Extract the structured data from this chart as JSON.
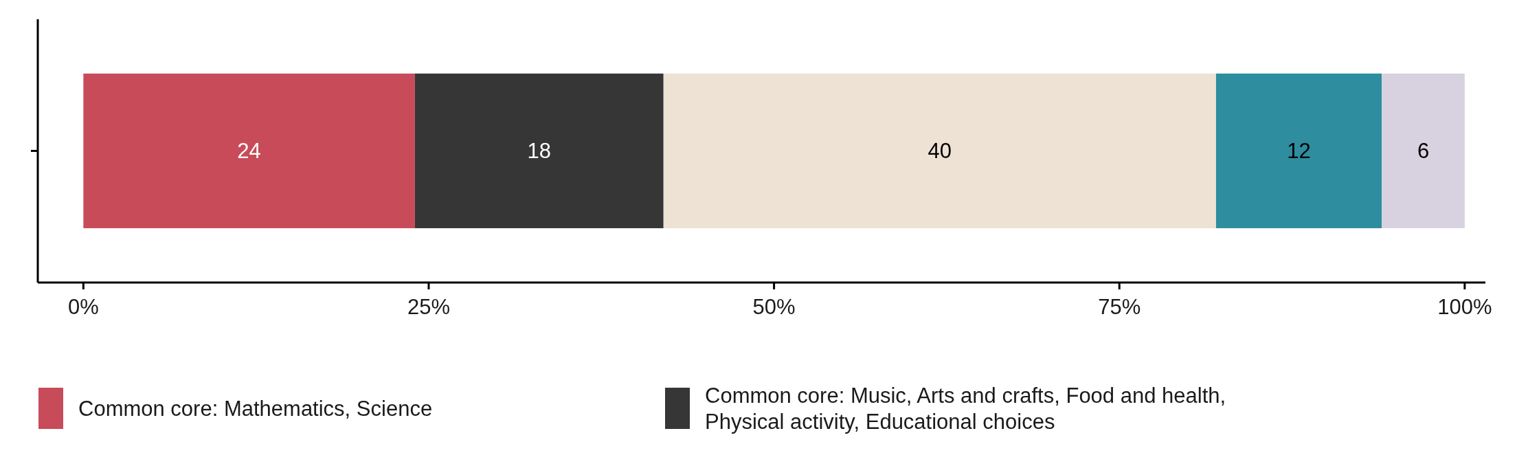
{
  "chart_data": {
    "type": "bar",
    "orientation": "horizontal",
    "stacked": true,
    "categories": [
      null
    ],
    "series": [
      {
        "name": "Common core: Mathematics, Science",
        "color": "#c84b5a",
        "values": [
          24
        ]
      },
      {
        "name": "Common core: Music, Arts and crafts, Food and health, Physical activity, Educational choices",
        "color": "#363636",
        "values": [
          18
        ]
      },
      {
        "color": "#ede2d3",
        "values": [
          40
        ]
      },
      {
        "color": "#2e8d9e",
        "values": [
          12
        ]
      },
      {
        "color": "#d8d2e0",
        "values": [
          6
        ]
      }
    ],
    "xlim": [
      -3.3,
      101.5
    ],
    "xticks": [
      {
        "value": 0,
        "label": "0%"
      },
      {
        "value": 25,
        "label": "25%"
      },
      {
        "value": 50,
        "label": "50%"
      },
      {
        "value": 75,
        "label": "75%"
      },
      {
        "value": 100,
        "label": "100%"
      }
    ],
    "data_labels": true,
    "grid": false,
    "legend": "bottom left"
  }
}
